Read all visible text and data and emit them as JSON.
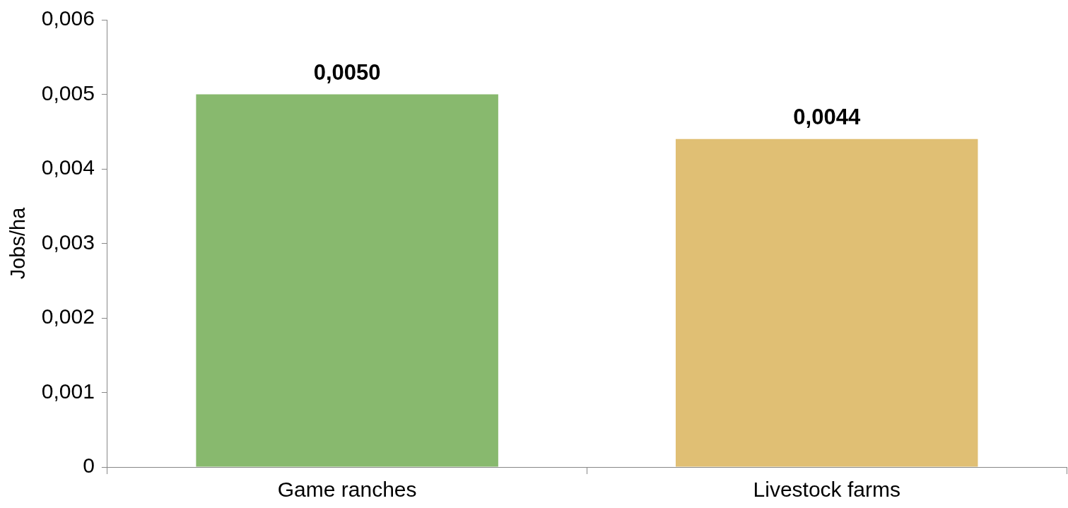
{
  "chart_data": {
    "type": "bar",
    "ylabel": "Jobs/ha",
    "categories": [
      "Game ranches",
      "Livestock farms"
    ],
    "values": [
      0.005,
      0.0044
    ],
    "colors": [
      "#88b96e",
      "#e0bf74"
    ],
    "value_labels": [
      "0,0050",
      "0,0044"
    ],
    "ylim": [
      0,
      0.006
    ],
    "yticks": [
      0,
      {
        "value": 0.001,
        "label": "0,001"
      },
      {
        "value": 0.002,
        "label": "0,002"
      },
      {
        "value": 0.003,
        "label": "0,003"
      },
      {
        "value": 0.004,
        "label": "0,004"
      },
      {
        "value": 0.005,
        "label": "0,005"
      },
      {
        "value": 0.006,
        "label": "0,006"
      }
    ],
    "grid": false,
    "legend": false
  }
}
